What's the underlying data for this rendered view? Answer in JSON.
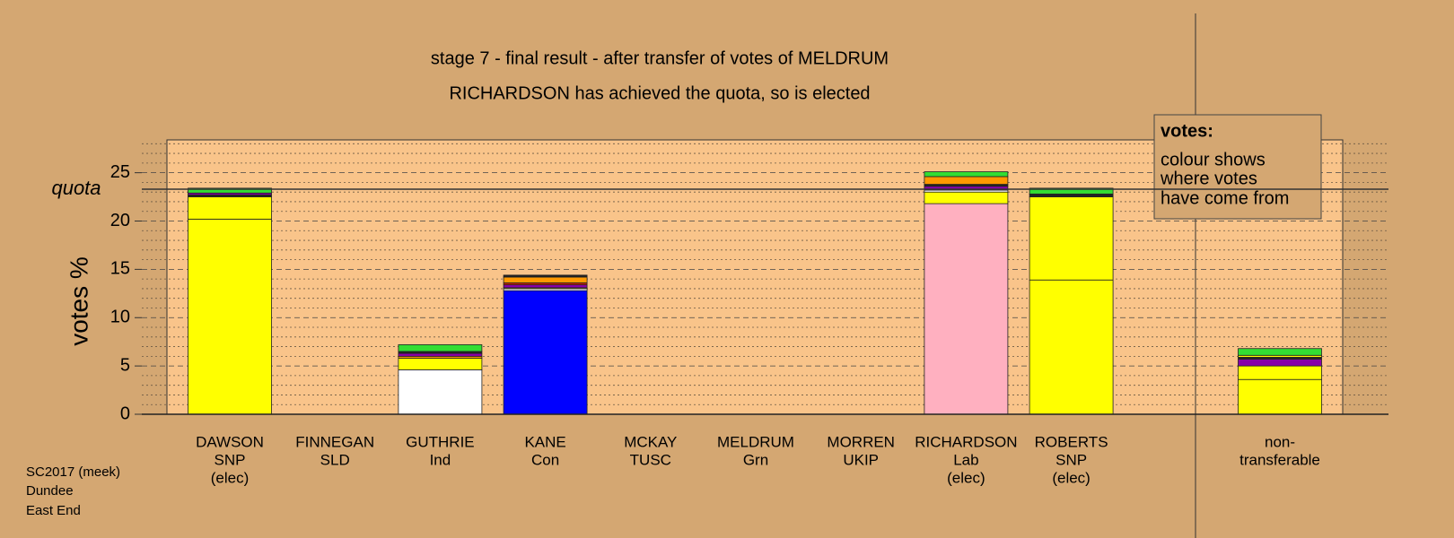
{
  "chart_data": {
    "type": "stacked-bar",
    "title": "stage 7 - final result - after transfer of votes of MELDRUM",
    "subtitle": "RICHARDSON has achieved the quota, so is elected",
    "y_label": "votes %",
    "categories": [
      [
        "DAWSON",
        "SNP",
        "(elec)"
      ],
      [
        "FINNEGAN",
        "SLD"
      ],
      [
        "GUTHRIE",
        "Ind"
      ],
      [
        "KANE",
        "Con"
      ],
      [
        "MCKAY",
        "TUSC"
      ],
      [
        "MELDRUM",
        "Grn"
      ],
      [
        "MORREN",
        "UKIP"
      ],
      [
        "RICHARDSON",
        "Lab",
        "(elec)"
      ],
      [
        "ROBERTS",
        "SNP",
        "(elec)"
      ],
      [
        "non-",
        "transferable"
      ]
    ],
    "bars": [
      [
        {
          "color": "#ffff00",
          "value": 20.2
        },
        {
          "color": "#ffff00",
          "value": 2.3
        },
        {
          "color": "#222222",
          "value": 0.2
        },
        {
          "color": "#8800aa",
          "value": 0.2
        },
        {
          "color": "#33dd33",
          "value": 0.5
        }
      ],
      [],
      [
        {
          "color": "#ffffff",
          "value": 4.6
        },
        {
          "color": "#ffff00",
          "value": 1.2
        },
        {
          "color": "#ff9900",
          "value": 0.2
        },
        {
          "color": "#8800aa",
          "value": 0.3
        },
        {
          "color": "#222222",
          "value": 0.2
        },
        {
          "color": "#33dd33",
          "value": 0.7
        }
      ],
      [
        {
          "color": "#0000ff",
          "value": 12.8
        },
        {
          "color": "#ffffff",
          "value": 0.2
        },
        {
          "color": "#ffff00",
          "value": 0.1
        },
        {
          "color": "#8800aa",
          "value": 0.3
        },
        {
          "color": "#cc2200",
          "value": 0.2
        },
        {
          "color": "#ff9900",
          "value": 0.6
        },
        {
          "color": "#222222",
          "value": 0.2
        }
      ],
      [],
      [],
      [],
      [
        {
          "color": "#ffb0c0",
          "value": 21.8
        },
        {
          "color": "#ffff00",
          "value": 1.2
        },
        {
          "color": "#ffffff",
          "value": 0.2
        },
        {
          "color": "#8800aa",
          "value": 0.4
        },
        {
          "color": "#222222",
          "value": 0.2
        },
        {
          "color": "#ff9900",
          "value": 0.8
        },
        {
          "color": "#33dd33",
          "value": 0.5
        }
      ],
      [
        {
          "color": "#ffff00",
          "value": 13.9
        },
        {
          "color": "#ffff00",
          "value": 8.6
        },
        {
          "color": "#222222",
          "value": 0.3
        },
        {
          "color": "#33dd33",
          "value": 0.6
        }
      ],
      [
        {
          "color": "#ffff00",
          "value": 3.6
        },
        {
          "color": "#ffff00",
          "value": 1.4
        },
        {
          "color": "#8800aa",
          "value": 0.7
        },
        {
          "color": "#222222",
          "value": 0.2
        },
        {
          "color": "#ffff00",
          "value": 0.2
        },
        {
          "color": "#33dd33",
          "value": 0.7
        }
      ]
    ],
    "quota": {
      "label": "quota",
      "value": 23.3
    },
    "ylim": [
      0,
      28.4
    ],
    "yticks": [
      0,
      5,
      10,
      15,
      20,
      25
    ],
    "minor_yticks": [
      1,
      2,
      3,
      4,
      6,
      7,
      8,
      9,
      11,
      12,
      13,
      14,
      16,
      17,
      18,
      19,
      21,
      22,
      23,
      24,
      26,
      27,
      28
    ],
    "grid": true,
    "legend": {
      "title": "votes:",
      "lines": [
        "colour shows",
        "where votes",
        "have come from"
      ]
    },
    "footer": [
      "SC2017 (meek)",
      "Dundee",
      "East End"
    ]
  }
}
